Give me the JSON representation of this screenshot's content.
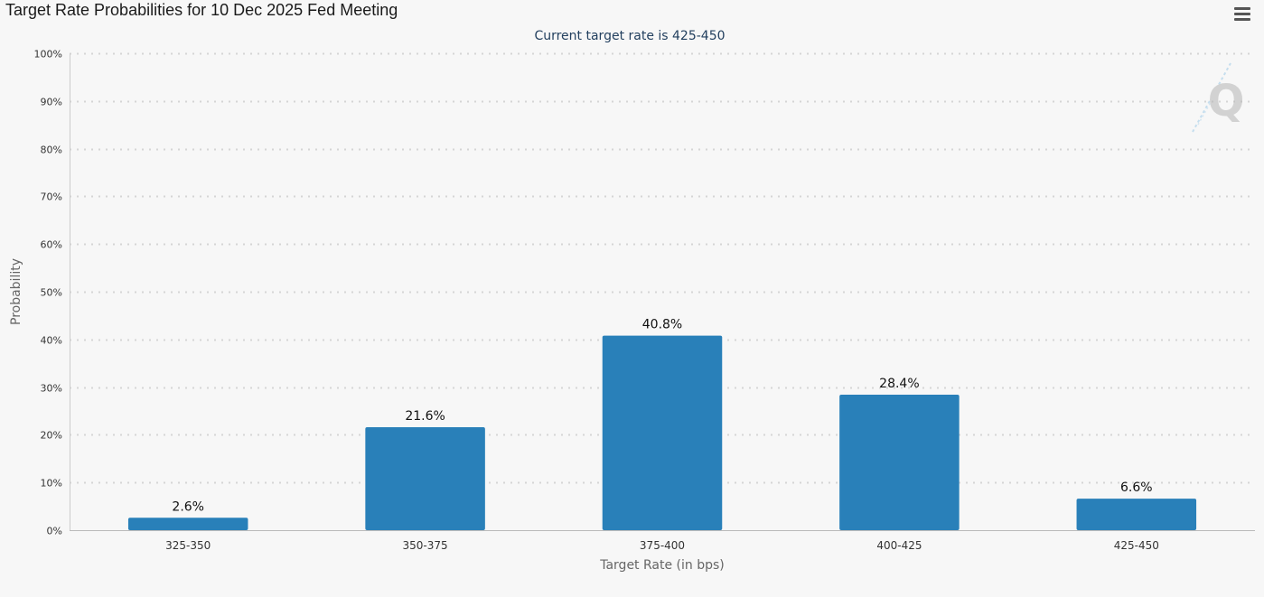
{
  "title": "Target Rate Probabilities for 10 Dec 2025 Fed Meeting",
  "menu_icon": "hamburger-menu-icon",
  "watermark_icon": "quikstrike-q-logo-icon",
  "colors": {
    "bar": "#2980b9",
    "grid": "#d5d5d5",
    "axis_text": "#333333",
    "subtitle": "#23405f",
    "background": "#f7f7f7"
  },
  "chart_data": {
    "type": "bar",
    "title": "Target Rate Probabilities for 10 Dec 2025 Fed Meeting",
    "subtitle": "Current target rate is 425-450",
    "categories": [
      "325-350",
      "350-375",
      "375-400",
      "400-425",
      "425-450"
    ],
    "values": [
      2.6,
      21.6,
      40.8,
      28.4,
      6.6
    ],
    "data_labels": [
      "2.6%",
      "21.6%",
      "40.8%",
      "28.4%",
      "6.6%"
    ],
    "xlabel": "Target Rate (in bps)",
    "ylabel": "Probability",
    "ylim": [
      0,
      100
    ],
    "yticks": [
      0,
      10,
      20,
      30,
      40,
      50,
      60,
      70,
      80,
      90,
      100
    ],
    "ytick_labels": [
      "0%",
      "10%",
      "20%",
      "30%",
      "40%",
      "50%",
      "60%",
      "70%",
      "80%",
      "90%",
      "100%"
    ],
    "grid": true,
    "legend": "none"
  }
}
